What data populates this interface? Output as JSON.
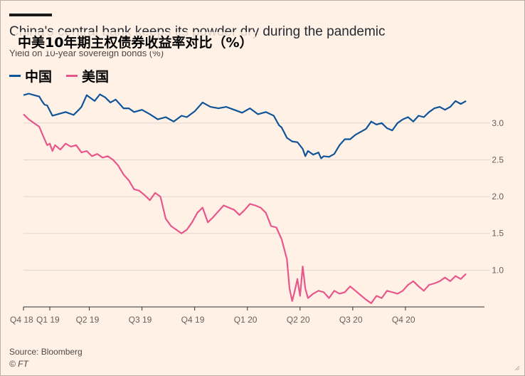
{
  "orig_title": "China's central bank keeps its powder dry during the pandemic",
  "title": "中美10年期主权债券收益率对比（%）",
  "subtitle": "Yield on 10-year sovereign bonds (%)",
  "source": "Source: Bloomberg",
  "footer_mark": "© FT",
  "colors": {
    "background": "#fff1e5",
    "china": "#0f5499",
    "us": "#e8578b",
    "grid": "#e2d6cc",
    "axis": "#33302e"
  },
  "chart_data": {
    "type": "line",
    "x_unit": "quarter (2018Q4 = 0)",
    "xlim": [
      0,
      8.75
    ],
    "ylim": [
      0.5,
      3.55
    ],
    "y_ticks": [
      1.0,
      1.5,
      2.0,
      2.5,
      3.0
    ],
    "y_tick_labels": [
      "1.0",
      "1.5",
      "2.0",
      "2.5",
      "3.0"
    ],
    "x_ticks": [
      0,
      0.5,
      1.25,
      2.25,
      3.25,
      4.25,
      5.25,
      6.25,
      7.25
    ],
    "x_tick_labels": [
      "Q4 18",
      "Q1 19",
      "Q2 19",
      "Q3 19",
      "Q4 19",
      "Q1 20",
      "Q2 20",
      "Q3 20",
      "Q4 20"
    ],
    "grid": true,
    "legend_position": "top-left",
    "series": [
      {
        "name": "中国",
        "color": "#0f5499",
        "x": [
          0,
          0.1,
          0.2,
          0.3,
          0.35,
          0.4,
          0.45,
          0.55,
          0.65,
          0.8,
          0.95,
          1.05,
          1.1,
          1.2,
          1.35,
          1.45,
          1.55,
          1.65,
          1.75,
          1.9,
          2.0,
          2.1,
          2.25,
          2.4,
          2.55,
          2.7,
          2.85,
          3.0,
          3.1,
          3.25,
          3.4,
          3.55,
          3.7,
          3.85,
          4.0,
          4.15,
          4.3,
          4.45,
          4.6,
          4.75,
          4.85,
          4.9,
          5.0,
          5.1,
          5.2,
          5.3,
          5.35,
          5.4,
          5.5,
          5.6,
          5.65,
          5.7,
          5.8,
          5.9,
          6.0,
          6.1,
          6.2,
          6.3,
          6.4,
          6.5,
          6.6,
          6.7,
          6.8,
          6.9,
          7.0,
          7.1,
          7.2,
          7.3,
          7.4,
          7.5,
          7.6,
          7.7,
          7.8,
          7.9,
          8.0,
          8.1,
          8.2,
          8.3,
          8.4
        ],
        "values": [
          3.38,
          3.4,
          3.38,
          3.36,
          3.3,
          3.25,
          3.24,
          3.1,
          3.12,
          3.15,
          3.11,
          3.18,
          3.22,
          3.38,
          3.3,
          3.39,
          3.35,
          3.28,
          3.32,
          3.2,
          3.2,
          3.15,
          3.18,
          3.12,
          3.05,
          3.08,
          3.02,
          3.1,
          3.08,
          3.16,
          3.28,
          3.22,
          3.2,
          3.22,
          3.18,
          3.14,
          3.2,
          3.12,
          3.15,
          3.1,
          2.97,
          2.94,
          2.8,
          2.75,
          2.74,
          2.65,
          2.55,
          2.62,
          2.57,
          2.6,
          2.52,
          2.55,
          2.54,
          2.58,
          2.7,
          2.78,
          2.78,
          2.84,
          2.88,
          2.92,
          3.02,
          2.98,
          3.0,
          2.93,
          2.9,
          3.0,
          3.05,
          3.08,
          3.02,
          3.1,
          3.08,
          3.15,
          3.2,
          3.22,
          3.18,
          3.22,
          3.3,
          3.26,
          3.3
        ]
      },
      {
        "name": "美国",
        "color": "#e8578b",
        "x": [
          0,
          0.1,
          0.2,
          0.3,
          0.4,
          0.45,
          0.5,
          0.55,
          0.6,
          0.7,
          0.8,
          0.9,
          1.0,
          1.1,
          1.2,
          1.3,
          1.4,
          1.5,
          1.6,
          1.7,
          1.8,
          1.9,
          2.0,
          2.1,
          2.2,
          2.3,
          2.4,
          2.5,
          2.6,
          2.7,
          2.8,
          2.9,
          3.0,
          3.1,
          3.2,
          3.3,
          3.4,
          3.5,
          3.6,
          3.7,
          3.8,
          3.9,
          4.0,
          4.1,
          4.2,
          4.3,
          4.4,
          4.5,
          4.6,
          4.7,
          4.8,
          4.9,
          5.0,
          5.05,
          5.1,
          5.15,
          5.2,
          5.25,
          5.3,
          5.35,
          5.4,
          5.5,
          5.6,
          5.7,
          5.8,
          5.9,
          6.0,
          6.1,
          6.2,
          6.3,
          6.4,
          6.5,
          6.6,
          6.7,
          6.8,
          6.9,
          7.0,
          7.1,
          7.2,
          7.3,
          7.4,
          7.5,
          7.6,
          7.7,
          7.8,
          7.9,
          8.0,
          8.1,
          8.2,
          8.3,
          8.4
        ],
        "values": [
          3.12,
          3.05,
          3.0,
          2.95,
          2.78,
          2.7,
          2.72,
          2.62,
          2.7,
          2.64,
          2.72,
          2.68,
          2.7,
          2.6,
          2.62,
          2.55,
          2.58,
          2.53,
          2.55,
          2.5,
          2.42,
          2.3,
          2.22,
          2.1,
          2.08,
          2.02,
          1.95,
          2.05,
          2.0,
          1.7,
          1.6,
          1.55,
          1.5,
          1.55,
          1.65,
          1.78,
          1.85,
          1.65,
          1.72,
          1.8,
          1.88,
          1.85,
          1.82,
          1.75,
          1.82,
          1.9,
          1.88,
          1.85,
          1.78,
          1.6,
          1.58,
          1.42,
          1.15,
          0.75,
          0.58,
          0.72,
          0.88,
          0.65,
          1.05,
          0.75,
          0.62,
          0.68,
          0.72,
          0.7,
          0.62,
          0.72,
          0.68,
          0.7,
          0.78,
          0.72,
          0.66,
          0.6,
          0.55,
          0.65,
          0.62,
          0.72,
          0.7,
          0.68,
          0.72,
          0.8,
          0.85,
          0.78,
          0.72,
          0.8,
          0.82,
          0.85,
          0.9,
          0.85,
          0.92,
          0.88,
          0.95
        ]
      }
    ]
  }
}
